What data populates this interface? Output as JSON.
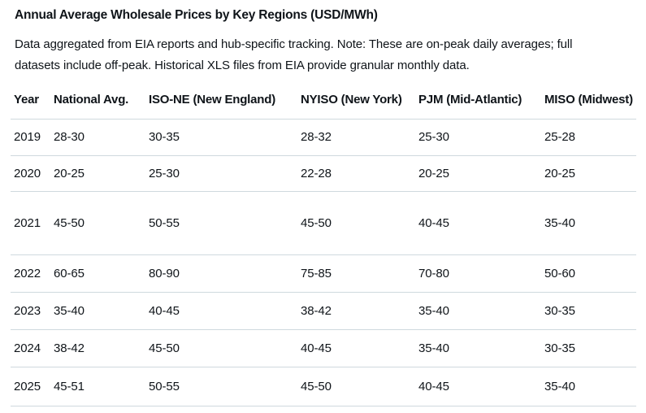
{
  "page": {
    "title": "Annual Average Wholesale Prices by Key Regions (USD/MWh)",
    "description_lines": [
      "Data aggregated from EIA reports and hub-specific tracking. Note: These are on-peak daily averages; full",
      "datasets include off-peak. Historical XLS files from EIA provide granular monthly data."
    ]
  },
  "table": {
    "columns": [
      "Year",
      "National Avg.",
      "ISO-NE (New England)",
      "NYISO (New York)",
      "PJM (Mid-Atlantic)",
      "MISO (Midwest)"
    ],
    "rows": [
      {
        "cells": [
          "2019",
          "28-30",
          "30-35",
          "28-32",
          "25-30",
          "25-28"
        ]
      },
      {
        "cells": [
          "2020",
          "20-25",
          "25-30",
          "22-28",
          "20-25",
          "20-25"
        ]
      },
      {
        "cells": [
          "2021",
          "45-50",
          "50-55",
          "45-50",
          "40-45",
          "35-40"
        ]
      },
      {
        "cells": [
          "2022",
          "60-65",
          "80-90",
          "75-85",
          "70-80",
          "50-60"
        ]
      },
      {
        "cells": [
          "2023",
          "35-40",
          "40-45",
          "38-42",
          "35-40",
          "30-35"
        ]
      },
      {
        "cells": [
          "2024",
          "38-42",
          "45-50",
          "40-45",
          "35-40",
          "30-35"
        ]
      },
      {
        "cells": [
          "2025",
          "45-51",
          "50-55",
          "45-50",
          "40-45",
          "35-40"
        ]
      }
    ]
  },
  "colors": {
    "text": "#0f1419",
    "divider": "#cfd9de",
    "background": "#ffffff"
  }
}
